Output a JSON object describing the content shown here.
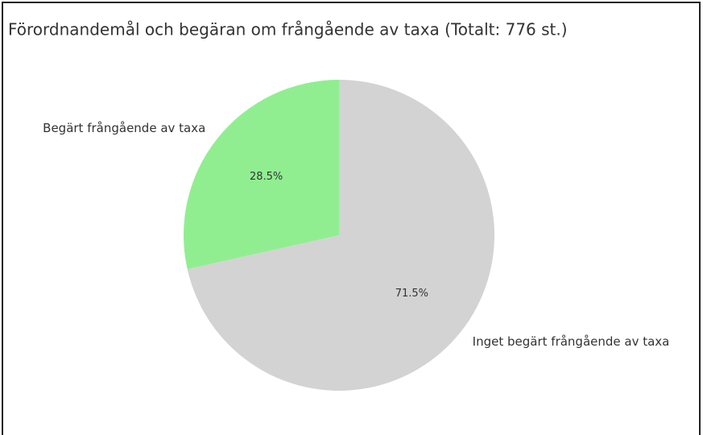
{
  "chart_data": {
    "type": "pie",
    "title": "Förordnandemål och begäran om frångående av taxa (Totalt: 776 st.)",
    "categories": [
      "Begärt frångående av taxa",
      "Inget begärt frångående av taxa"
    ],
    "values": [
      28.5,
      71.5
    ],
    "value_labels": [
      "28.5%",
      "71.5%"
    ],
    "colors": [
      "#90ee90",
      "#d3d3d3"
    ]
  }
}
